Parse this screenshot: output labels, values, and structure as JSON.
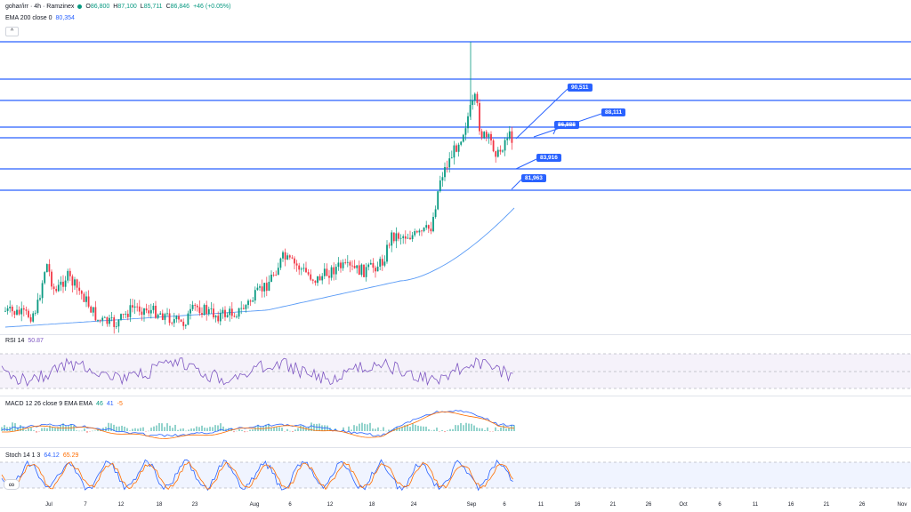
{
  "header": {
    "symbol": "gohar/irr · 4h · Ramzinex",
    "ohlc": {
      "open_label": "O",
      "open": "86,800",
      "high_label": "H",
      "high": "87,100",
      "low_label": "L",
      "low": "85,711",
      "close_label": "C",
      "close": "86,846",
      "change": "+46 (+0.05%)"
    },
    "indicator": {
      "name": "EMA 200 close 0",
      "value": "80,354"
    },
    "collapse_glyph": "^"
  },
  "price_tags": [
    {
      "label": "90,511"
    },
    {
      "label": "88,111"
    },
    {
      "label": "86,888"
    },
    {
      "label": "83,916"
    },
    {
      "label": "81,963"
    }
  ],
  "rsi": {
    "name": "RSI 14",
    "value": "50.87"
  },
  "macd": {
    "name": "MACD 12 26 close 9 EMA EMA",
    "v1": "46",
    "v2": "41",
    "v3": "-5"
  },
  "stoch": {
    "name": "Stoch 14 1 3",
    "v1": "64.12",
    "v2": "65.29"
  },
  "x_axis": [
    "Jul",
    "7",
    "12",
    "18",
    "23",
    "Aug",
    "6",
    "12",
    "18",
    "24",
    "Sep",
    "6",
    "11",
    "16",
    "21",
    "26",
    "Oct",
    "6",
    "11",
    "16",
    "21",
    "26",
    "Nov"
  ],
  "colors": {
    "up": "#089981",
    "down": "#f23645",
    "line": "#2962ff",
    "ema": "#5b9cf6",
    "rsi": "#7e57c2",
    "macd": "#2962ff",
    "signal": "#ff6d00"
  }
}
